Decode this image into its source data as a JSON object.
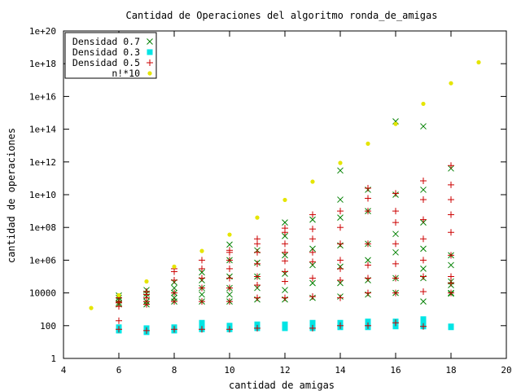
{
  "chart_data": {
    "type": "scatter",
    "title": "Cantidad de Operaciones del algoritmo ronda_de_amigas",
    "xlabel": "cantidad de amigas",
    "ylabel": "cantidad de operaciones",
    "xlim": [
      4,
      20
    ],
    "ylim": [
      1,
      1e+20
    ],
    "yscale": "log",
    "x_ticks": [
      4,
      6,
      8,
      10,
      12,
      14,
      16,
      18,
      20
    ],
    "y_ticks": [
      {
        "value": 1,
        "label": "1"
      },
      {
        "value": 100,
        "label": "100"
      },
      {
        "value": 10000,
        "label": "10000"
      },
      {
        "value": 1000000.0,
        "label": "1e+06"
      },
      {
        "value": 100000000.0,
        "label": "1e+08"
      },
      {
        "value": 10000000000.0,
        "label": "1e+10"
      },
      {
        "value": 1000000000000.0,
        "label": "1e+12"
      },
      {
        "value": 100000000000000.0,
        "label": "1e+14"
      },
      {
        "value": 1e+16,
        "label": "1e+16"
      },
      {
        "value": 1e+18,
        "label": "1e+18"
      },
      {
        "value": 1e+20,
        "label": "1e+20"
      }
    ],
    "grid": false,
    "legend_position": "top-left",
    "series": [
      {
        "name": "Densidad 0.7",
        "color": "#008000",
        "marker": "x",
        "points": [
          [
            6,
            2500
          ],
          [
            6,
            3500
          ],
          [
            6,
            5000
          ],
          [
            6,
            7000
          ],
          [
            6,
            2000
          ],
          [
            7,
            3000
          ],
          [
            7,
            6000
          ],
          [
            7,
            9000
          ],
          [
            7,
            15000
          ],
          [
            7,
            2000
          ],
          [
            8,
            3000
          ],
          [
            8,
            5000
          ],
          [
            8,
            10000
          ],
          [
            8,
            20000
          ],
          [
            8,
            45000
          ],
          [
            9,
            3000
          ],
          [
            9,
            8000
          ],
          [
            9,
            20000
          ],
          [
            9,
            60000
          ],
          [
            9,
            180000
          ],
          [
            10,
            3000
          ],
          [
            10,
            8000
          ],
          [
            10,
            20000
          ],
          [
            10,
            100000
          ],
          [
            10,
            1000000
          ],
          [
            10,
            9000000
          ],
          [
            11,
            4000
          ],
          [
            11,
            20000
          ],
          [
            11,
            100000
          ],
          [
            11,
            700000
          ],
          [
            11,
            4000000
          ],
          [
            12,
            4000
          ],
          [
            12,
            15000
          ],
          [
            12,
            150000
          ],
          [
            12,
            2000000
          ],
          [
            12,
            30000000
          ],
          [
            12,
            200000000
          ],
          [
            13,
            5000
          ],
          [
            13,
            40000
          ],
          [
            13,
            500000
          ],
          [
            13,
            5000000
          ],
          [
            13,
            300000000
          ],
          [
            14,
            6000
          ],
          [
            14,
            40000
          ],
          [
            14,
            400000
          ],
          [
            14,
            8000000
          ],
          [
            14,
            400000000
          ],
          [
            14,
            5000000000
          ],
          [
            14,
            300000000000
          ],
          [
            15,
            8000
          ],
          [
            15,
            60000
          ],
          [
            15,
            1000000
          ],
          [
            15,
            10000000
          ],
          [
            15,
            1000000000
          ],
          [
            15,
            20000000000
          ],
          [
            16,
            10000
          ],
          [
            16,
            80000
          ],
          [
            16,
            3000000
          ],
          [
            16,
            40000000
          ],
          [
            16,
            10000000000
          ],
          [
            16,
            300000000000000
          ],
          [
            17,
            3000
          ],
          [
            17,
            80000
          ],
          [
            17,
            300000
          ],
          [
            17,
            5000000
          ],
          [
            17,
            200000000
          ],
          [
            17,
            20000000000
          ],
          [
            17,
            150000000000000
          ],
          [
            18,
            9000
          ],
          [
            18,
            10000
          ],
          [
            18,
            30000
          ],
          [
            18,
            50000
          ],
          [
            18,
            500000
          ],
          [
            18,
            2000000
          ],
          [
            18,
            400000000000
          ]
        ]
      },
      {
        "name": "Densidad 0.3",
        "color": "#00e5e5",
        "marker": "square",
        "points": [
          [
            6,
            50
          ],
          [
            6,
            60
          ],
          [
            6,
            70
          ],
          [
            6,
            80
          ],
          [
            7,
            40
          ],
          [
            7,
            50
          ],
          [
            7,
            60
          ],
          [
            7,
            70
          ],
          [
            8,
            50
          ],
          [
            8,
            60
          ],
          [
            8,
            70
          ],
          [
            8,
            80
          ],
          [
            9,
            60
          ],
          [
            9,
            80
          ],
          [
            9,
            120
          ],
          [
            9,
            150
          ],
          [
            10,
            60
          ],
          [
            10,
            70
          ],
          [
            10,
            80
          ],
          [
            10,
            100
          ],
          [
            11,
            70
          ],
          [
            11,
            80
          ],
          [
            11,
            100
          ],
          [
            11,
            120
          ],
          [
            12,
            70
          ],
          [
            12,
            80
          ],
          [
            12,
            100
          ],
          [
            12,
            120
          ],
          [
            13,
            70
          ],
          [
            13,
            90
          ],
          [
            13,
            120
          ],
          [
            13,
            150
          ],
          [
            14,
            80
          ],
          [
            14,
            100
          ],
          [
            14,
            130
          ],
          [
            14,
            150
          ],
          [
            15,
            80
          ],
          [
            15,
            100
          ],
          [
            15,
            130
          ],
          [
            15,
            180
          ],
          [
            16,
            90
          ],
          [
            16,
            120
          ],
          [
            16,
            150
          ],
          [
            16,
            180
          ],
          [
            17,
            90
          ],
          [
            17,
            120
          ],
          [
            17,
            180
          ],
          [
            17,
            250
          ],
          [
            18,
            80
          ],
          [
            18,
            90
          ]
        ]
      },
      {
        "name": "Densidad 0.5",
        "color": "#cc0000",
        "marker": "plus",
        "points": [
          [
            6,
            60
          ],
          [
            6,
            1500
          ],
          [
            6,
            2500
          ],
          [
            6,
            3000
          ],
          [
            6,
            5000
          ],
          [
            6,
            200
          ],
          [
            7,
            50
          ],
          [
            7,
            2000
          ],
          [
            7,
            3000
          ],
          [
            7,
            5000
          ],
          [
            7,
            8000
          ],
          [
            7,
            12000
          ],
          [
            8,
            60
          ],
          [
            8,
            3000
          ],
          [
            8,
            10000
          ],
          [
            8,
            60000
          ],
          [
            8,
            200000
          ],
          [
            8,
            300000
          ],
          [
            9,
            60
          ],
          [
            9,
            3000
          ],
          [
            9,
            20000
          ],
          [
            9,
            80000
          ],
          [
            9,
            300000
          ],
          [
            9,
            1000000
          ],
          [
            10,
            60
          ],
          [
            10,
            3000
          ],
          [
            10,
            20000
          ],
          [
            10,
            80000
          ],
          [
            10,
            300000
          ],
          [
            10,
            1000000
          ],
          [
            10,
            3000000
          ],
          [
            10,
            4000000
          ],
          [
            11,
            70
          ],
          [
            11,
            5000
          ],
          [
            11,
            30000
          ],
          [
            11,
            100000
          ],
          [
            11,
            600000
          ],
          [
            11,
            3000000
          ],
          [
            11,
            10000000
          ],
          [
            11,
            20000000
          ],
          [
            12,
            5000
          ],
          [
            12,
            50000
          ],
          [
            12,
            200000
          ],
          [
            12,
            900000
          ],
          [
            12,
            3000000
          ],
          [
            12,
            10000000
          ],
          [
            12,
            50000000
          ],
          [
            12,
            90000000
          ],
          [
            13,
            70
          ],
          [
            13,
            6000
          ],
          [
            13,
            80000
          ],
          [
            13,
            800000
          ],
          [
            13,
            3000000
          ],
          [
            13,
            20000000
          ],
          [
            13,
            80000000
          ],
          [
            13,
            600000000
          ],
          [
            14,
            100
          ],
          [
            14,
            5000
          ],
          [
            14,
            60000
          ],
          [
            14,
            300000
          ],
          [
            14,
            1000000
          ],
          [
            14,
            10000000
          ],
          [
            14,
            100000000
          ],
          [
            14,
            1000000000
          ],
          [
            15,
            100
          ],
          [
            15,
            10000
          ],
          [
            15,
            80000
          ],
          [
            15,
            500000
          ],
          [
            15,
            10000000
          ],
          [
            15,
            1000000000
          ],
          [
            15,
            6000000000
          ],
          [
            15,
            25000000000
          ],
          [
            16,
            150
          ],
          [
            16,
            10000
          ],
          [
            16,
            80000
          ],
          [
            16,
            600000
          ],
          [
            16,
            10000000
          ],
          [
            16,
            200000000
          ],
          [
            16,
            1000000000
          ],
          [
            16,
            12000000000
          ],
          [
            17,
            90
          ],
          [
            17,
            12000
          ],
          [
            17,
            100000
          ],
          [
            17,
            1000000
          ],
          [
            17,
            20000000
          ],
          [
            17,
            300000000
          ],
          [
            17,
            5000000000
          ],
          [
            17,
            70000000000
          ],
          [
            18,
            10000
          ],
          [
            18,
            40000
          ],
          [
            18,
            100000
          ],
          [
            18,
            2000000
          ],
          [
            18,
            50000000
          ],
          [
            18,
            600000000
          ],
          [
            18,
            5000000000
          ],
          [
            18,
            40000000000
          ],
          [
            18,
            600000000000
          ]
        ]
      },
      {
        "name": "n!*10",
        "color": "#e5e500",
        "marker": "dot",
        "points": [
          [
            5,
            1200
          ],
          [
            6,
            7200
          ],
          [
            7,
            50400
          ],
          [
            8,
            403200
          ],
          [
            9,
            3628800
          ],
          [
            10,
            36288000
          ],
          [
            11,
            399168000
          ],
          [
            12,
            4790016000
          ],
          [
            13,
            62270208000
          ],
          [
            14,
            871782912000
          ],
          [
            15,
            13076743680000
          ],
          [
            16,
            209227898880000
          ],
          [
            17,
            3556874280960000
          ],
          [
            18,
            64023737057280000
          ],
          [
            19,
            1216451004088320000
          ]
        ]
      }
    ]
  }
}
